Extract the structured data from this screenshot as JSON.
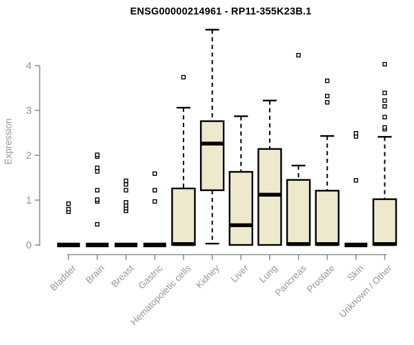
{
  "chart_data": {
    "type": "boxplot",
    "title": "ENSG00000214961 - RP11-355K23B.1",
    "ylabel": "Expression",
    "xlabel": "",
    "ylim": [
      0,
      4.8
    ],
    "yticks": [
      0,
      1,
      2,
      3,
      4
    ],
    "grid": false,
    "legend": "none",
    "categories": [
      "Bladder",
      "Brain",
      "Breast",
      "Gastric",
      "Hematopoietic cells",
      "Kidney",
      "Liver",
      "Lung",
      "Pancreas",
      "Prostate",
      "Skin",
      "Unknown / Other"
    ],
    "boxes": [
      {
        "category": "Bladder",
        "q1": 0,
        "median": 0,
        "q3": 0,
        "whisker_low": 0,
        "whisker_high": 0,
        "outliers": [
          0.74,
          0.8,
          0.92
        ]
      },
      {
        "category": "Brain",
        "q1": 0,
        "median": 0,
        "q3": 0,
        "whisker_low": 0,
        "whisker_high": 0,
        "outliers": [
          0.46,
          0.97,
          1.01,
          1.22,
          1.64,
          1.72,
          1.97,
          2.01
        ]
      },
      {
        "category": "Breast",
        "q1": 0,
        "median": 0,
        "q3": 0,
        "whisker_low": 0,
        "whisker_high": 0,
        "outliers": [
          0.76,
          0.82,
          0.88,
          0.95,
          1.22,
          1.35,
          1.43
        ]
      },
      {
        "category": "Gastric",
        "q1": 0,
        "median": 0,
        "q3": 0,
        "whisker_low": 0,
        "whisker_high": 0,
        "outliers": [
          0.97,
          1.22,
          1.59
        ]
      },
      {
        "category": "Hematopoietic cells",
        "q1": 0,
        "median": 0.02,
        "q3": 1.26,
        "whisker_low": 0,
        "whisker_high": 3.06,
        "outliers": [
          3.74
        ]
      },
      {
        "category": "Kidney",
        "q1": 1.22,
        "median": 2.26,
        "q3": 2.76,
        "whisker_low": 0.03,
        "whisker_high": 4.8,
        "outliers": []
      },
      {
        "category": "Liver",
        "q1": 0,
        "median": 0.44,
        "q3": 1.63,
        "whisker_low": 0,
        "whisker_high": 2.87,
        "outliers": []
      },
      {
        "category": "Lung",
        "q1": 0,
        "median": 1.12,
        "q3": 2.14,
        "whisker_low": 0,
        "whisker_high": 3.22,
        "outliers": []
      },
      {
        "category": "Pancreas",
        "q1": 0,
        "median": 0.02,
        "q3": 1.45,
        "whisker_low": 0,
        "whisker_high": 1.77,
        "outliers": [
          4.23
        ]
      },
      {
        "category": "Prostate",
        "q1": 0,
        "median": 0.02,
        "q3": 1.21,
        "whisker_low": 0,
        "whisker_high": 2.43,
        "outliers": [
          3.18,
          3.32,
          3.66
        ]
      },
      {
        "category": "Skin",
        "q1": 0,
        "median": 0,
        "q3": 0,
        "whisker_low": 0,
        "whisker_high": 0,
        "outliers": [
          1.44,
          2.42,
          2.49
        ]
      },
      {
        "category": "Unknown / Other",
        "q1": 0,
        "median": 0.02,
        "q3": 1.02,
        "whisker_low": 0,
        "whisker_high": 2.41,
        "outliers": [
          2.58,
          2.62,
          2.85,
          3.09,
          3.22,
          3.39,
          4.03
        ]
      }
    ]
  },
  "colors": {
    "box_fill": "#EEE8CD",
    "box_stroke": "#000000",
    "median": "#000000",
    "whisker": "#000000",
    "outlier_stroke": "#000000",
    "outlier_fill": "#ffffff",
    "axis": "#8f8f8f",
    "tick_label": "#969696",
    "title": "#000000",
    "background": "#ffffff"
  }
}
